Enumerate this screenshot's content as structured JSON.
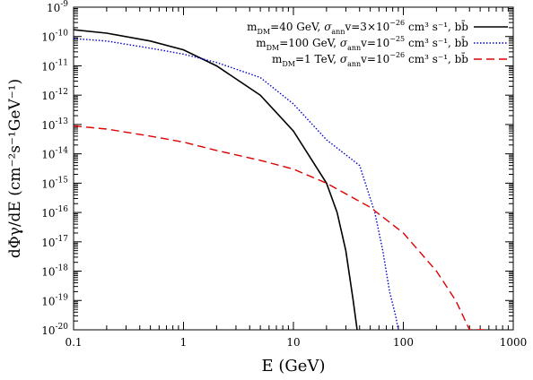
{
  "chart_data": {
    "type": "line",
    "xlabel": "E (GeV)",
    "ylabel": "dΦγ/dE (cm⁻²s⁻¹GeV⁻¹)",
    "xscale": "log",
    "yscale": "log",
    "xlim": [
      0.1,
      1000
    ],
    "ylim": [
      1e-20,
      1e-09
    ],
    "grid": false,
    "legend_position": "top-right",
    "x_tick_labels": [
      "0.1",
      "1",
      "10",
      "100",
      "1000"
    ],
    "y_tick_labels": [
      {
        "base": "10",
        "exp": "-20"
      },
      {
        "base": "10",
        "exp": "-19"
      },
      {
        "base": "10",
        "exp": "-18"
      },
      {
        "base": "10",
        "exp": "-17"
      },
      {
        "base": "10",
        "exp": "-16"
      },
      {
        "base": "10",
        "exp": "-15"
      },
      {
        "base": "10",
        "exp": "-14"
      },
      {
        "base": "10",
        "exp": "-13"
      },
      {
        "base": "10",
        "exp": "-12"
      },
      {
        "base": "10",
        "exp": "-11"
      },
      {
        "base": "10",
        "exp": "-10"
      },
      {
        "base": "10",
        "exp": "-9"
      }
    ],
    "series": [
      {
        "name": "mDM=40 GeV, σannv=3×10⁻²⁶ cm³ s⁻¹, bb̄",
        "color": "#000000",
        "style": "solid",
        "x": [
          0.1,
          0.2,
          0.5,
          1,
          2,
          5,
          10,
          20,
          25,
          30,
          35,
          38
        ],
        "y": [
          1.7e-10,
          1.3e-10,
          7e-11,
          3.5e-11,
          1e-11,
          1e-12,
          6e-14,
          1e-15,
          1e-16,
          5e-18,
          1e-19,
          1e-20
        ]
      },
      {
        "name": "mDM=100 GeV, σannv=10⁻²⁵ cm³ s⁻¹, bb̄",
        "color": "#0000cc",
        "style": "dotted",
        "x": [
          0.1,
          0.2,
          0.5,
          1,
          2,
          5,
          10,
          20,
          40,
          55,
          65,
          75,
          85,
          90
        ],
        "y": [
          8.5e-11,
          7e-11,
          4e-11,
          2.5e-11,
          1.3e-11,
          4e-12,
          5e-13,
          3e-14,
          4e-15,
          1e-16,
          5e-18,
          2e-19,
          3e-20,
          1e-20
        ]
      },
      {
        "name": "mDM=1 TeV, σannv=10⁻²⁶ cm³ s⁻¹, bb̄",
        "color": "#dd0000",
        "style": "dashed",
        "x": [
          0.1,
          0.2,
          0.5,
          1,
          2,
          5,
          10,
          20,
          50,
          100,
          200,
          300,
          400,
          500,
          550
        ],
        "y": [
          9e-14,
          7e-14,
          4e-14,
          2.5e-14,
          1.3e-14,
          6e-15,
          3e-15,
          1e-15,
          1.5e-16,
          2e-17,
          1e-18,
          1e-19,
          1e-20,
          1e-20,
          1e-20
        ]
      }
    ],
    "legend": [
      {
        "m_base": "m",
        "m_sub": "DM",
        "m_val": "=40 GeV,  ",
        "s_base": "σ",
        "s_sub": "ann",
        "s_rest": "v=3×10",
        "s_exp": "−26",
        "units": " cm³ s⁻¹,  bb̄"
      },
      {
        "m_base": "m",
        "m_sub": "DM",
        "m_val": "=100 GeV,  ",
        "s_base": "σ",
        "s_sub": "ann",
        "s_rest": "v=10",
        "s_exp": "−25",
        "units": " cm³ s⁻¹,  bb̄"
      },
      {
        "m_base": "m",
        "m_sub": "DM",
        "m_val": "=1 TeV,  ",
        "s_base": "σ",
        "s_sub": "ann",
        "s_rest": "v=10",
        "s_exp": "−26",
        "units": " cm³ s⁻¹,  bb̄"
      }
    ]
  }
}
